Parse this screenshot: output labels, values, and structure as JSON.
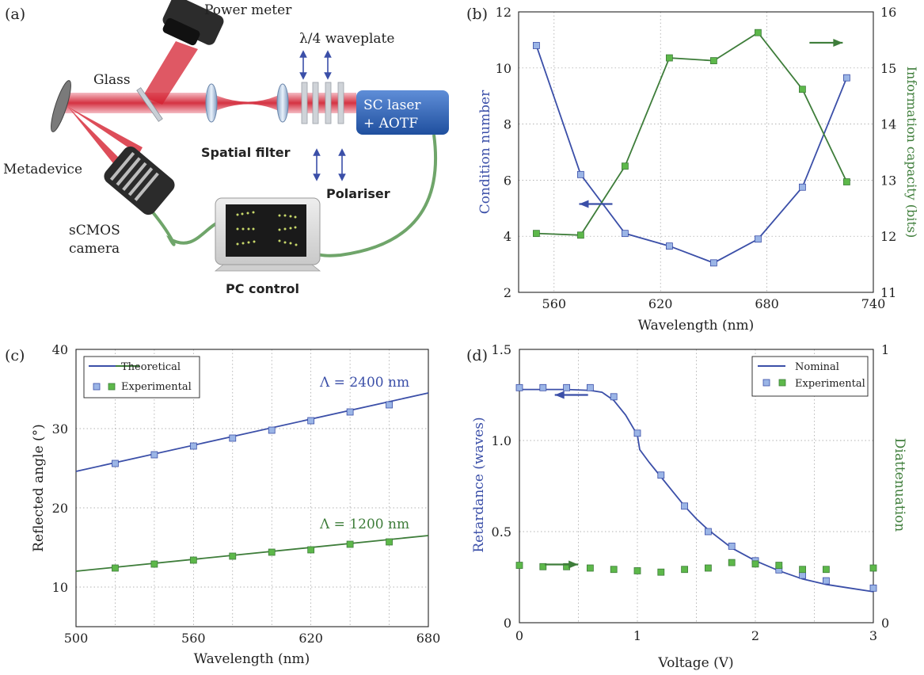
{
  "panels": {
    "a": {
      "tag": "(a)"
    },
    "b": {
      "tag": "(b)"
    },
    "c": {
      "tag": "(c)"
    },
    "d": {
      "tag": "(d)"
    }
  },
  "setup": {
    "power_meter": "Power meter",
    "glass": "Glass",
    "waveplate": "λ/4 waveplate",
    "laser_line1": "SC laser",
    "laser_line2": "+ AOTF",
    "metadevice": "Metadevice",
    "spatial_filter": "Spatial filter",
    "polariser": "Polariser",
    "camera_line1": "sCMOS",
    "camera_line2": "camera",
    "pc_control": "PC control"
  },
  "colors": {
    "blue": "#3b4fa8",
    "green": "#3e7d3a",
    "blue_marker": "#9bb5e6",
    "green_marker": "#5db84a",
    "laser": "#d42030"
  },
  "chart_data": [
    {
      "id": "b",
      "type": "line",
      "xlabel": "Wavelength (nm)",
      "ylabel": "Condition number",
      "y2label": "Information capacity (bits)",
      "xlim": [
        540,
        740
      ],
      "ylim": [
        2,
        12
      ],
      "y2lim": [
        11,
        16
      ],
      "xticks": [
        560,
        620,
        680,
        740
      ],
      "yticks": [
        2,
        4,
        6,
        8,
        10,
        12
      ],
      "y2ticks": [
        11,
        12,
        13,
        14,
        15,
        16
      ],
      "grid": true,
      "x": [
        550,
        575,
        600,
        625,
        650,
        675,
        700,
        725
      ],
      "series": [
        {
          "axis": "left",
          "color": "blue",
          "values": [
            10.8,
            6.2,
            4.1,
            3.65,
            3.05,
            3.9,
            5.75,
            9.65
          ]
        },
        {
          "axis": "right",
          "color": "green",
          "values": [
            12.05,
            12.02,
            13.25,
            15.18,
            15.13,
            15.63,
            14.62,
            12.97
          ]
        }
      ],
      "annotations": [
        {
          "arrow": "left",
          "color": "blue",
          "x": 592,
          "y": 5.15
        },
        {
          "arrow": "right",
          "color": "green",
          "x": 704,
          "y": 15.45
        }
      ]
    },
    {
      "id": "c",
      "type": "line",
      "xlabel": "Wavelength (nm)",
      "ylabel": "Reflected angle (°)",
      "xlim": [
        500,
        680
      ],
      "ylim": [
        5,
        40
      ],
      "xticks": [
        500,
        560,
        620,
        680
      ],
      "yticks": [
        10,
        20,
        30,
        40
      ],
      "grid": true,
      "legend": {
        "position": "top-left",
        "entries": [
          "Theoretical",
          "Experimental"
        ]
      },
      "series": [
        {
          "label": "Λ = 2400 nm",
          "color": "blue",
          "line_x": [
            500,
            680
          ],
          "line_y": [
            24.6,
            34.5
          ],
          "x": [
            520,
            540,
            560,
            580,
            600,
            620,
            640,
            660
          ],
          "values": [
            25.6,
            26.7,
            27.8,
            28.8,
            29.8,
            31.0,
            32.1,
            33.0
          ]
        },
        {
          "label": "Λ = 1200 nm",
          "color": "green",
          "line_x": [
            500,
            680
          ],
          "line_y": [
            12.0,
            16.5
          ],
          "x": [
            520,
            540,
            560,
            580,
            600,
            620,
            640,
            660
          ],
          "values": [
            12.4,
            12.9,
            13.4,
            13.9,
            14.4,
            14.7,
            15.4,
            15.7
          ]
        }
      ]
    },
    {
      "id": "d",
      "type": "line",
      "xlabel": "Voltage (V)",
      "ylabel": "Retardance (waves)",
      "y2label": "Diattenuation",
      "xlim": [
        0,
        3
      ],
      "ylim": [
        0,
        1.5
      ],
      "y2lim": [
        0,
        1
      ],
      "xticks": [
        0,
        1,
        2,
        3
      ],
      "yticks": [
        0,
        0.5,
        1.0,
        1.5
      ],
      "ytick_labels": [
        "0",
        "0.5",
        "1.0",
        "1.5"
      ],
      "y2ticks": [
        0,
        1
      ],
      "grid": true,
      "legend": {
        "position": "top-right",
        "entries": [
          "Nominal",
          "Experimental"
        ]
      },
      "nominal": {
        "x": [
          0,
          0.2,
          0.4,
          0.6,
          0.7,
          0.8,
          0.9,
          1.0,
          1.02,
          1.1,
          1.2,
          1.3,
          1.4,
          1.5,
          1.6,
          1.8,
          2.0,
          2.2,
          2.4,
          2.6,
          2.8,
          3.0
        ],
        "values": [
          1.28,
          1.28,
          1.28,
          1.275,
          1.265,
          1.22,
          1.14,
          1.03,
          0.95,
          0.88,
          0.8,
          0.72,
          0.64,
          0.57,
          0.51,
          0.41,
          0.34,
          0.285,
          0.24,
          0.21,
          0.19,
          0.17
        ]
      },
      "retardance": {
        "x": [
          0,
          0.2,
          0.4,
          0.6,
          0.8,
          1.0,
          1.2,
          1.4,
          1.6,
          1.8,
          2.0,
          2.2,
          2.4,
          2.6,
          3.0
        ],
        "values": [
          1.29,
          1.29,
          1.29,
          1.29,
          1.24,
          1.04,
          0.81,
          0.64,
          0.5,
          0.42,
          0.34,
          0.29,
          0.26,
          0.23,
          0.19
        ]
      },
      "diattenuation": {
        "x": [
          0,
          0.2,
          0.4,
          0.6,
          0.8,
          1.0,
          1.2,
          1.4,
          1.6,
          1.8,
          2.0,
          2.2,
          2.4,
          2.6,
          3.0
        ],
        "values": [
          0.21,
          0.205,
          0.205,
          0.2,
          0.195,
          0.19,
          0.185,
          0.195,
          0.2,
          0.22,
          0.215,
          0.21,
          0.195,
          0.195,
          0.2
        ]
      },
      "annotations": [
        {
          "arrow": "left",
          "color": "blue",
          "x": 0.3,
          "y": 1.25
        },
        {
          "arrow": "right",
          "color": "green",
          "x": 0.35,
          "y": 0.3
        }
      ]
    }
  ]
}
